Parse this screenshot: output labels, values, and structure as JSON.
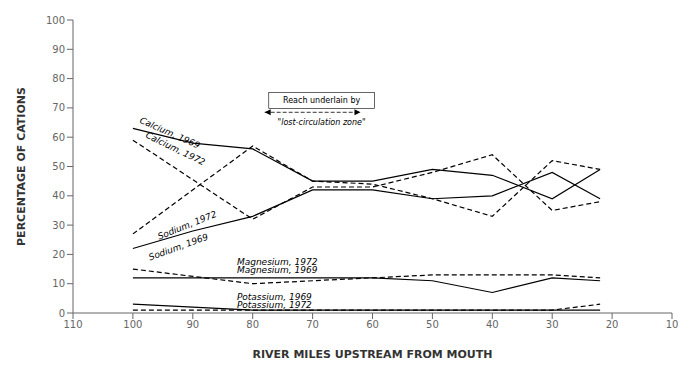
{
  "chart_data": {
    "type": "line",
    "xlabel": "RIVER MILES UPSTREAM FROM MOUTH",
    "ylabel": "PERCENTAGE OF CATIONS",
    "xlim": [
      110,
      10
    ],
    "ylim": [
      0,
      100
    ],
    "xticks": [
      110,
      100,
      90,
      80,
      70,
      60,
      50,
      40,
      30,
      20,
      10
    ],
    "yticks": [
      0,
      10,
      20,
      30,
      40,
      50,
      60,
      70,
      80,
      90,
      100
    ],
    "grid": false,
    "series": [
      {
        "name": "Calcium, 1969",
        "color": "#000000",
        "line_style": "solid",
        "x": [
          100,
          90,
          80,
          70,
          60,
          50,
          40,
          30,
          22
        ],
        "values": [
          63,
          58,
          56,
          45,
          45,
          49,
          47,
          39,
          49
        ]
      },
      {
        "name": "Calcium, 1972",
        "color": "#000000",
        "line_style": "dashed",
        "x": [
          100,
          80,
          70,
          60,
          50,
          40,
          30,
          22
        ],
        "values": [
          59,
          32,
          43,
          43,
          48,
          54,
          35,
          38
        ]
      },
      {
        "name": "Sodium, 1969",
        "color": "#000000",
        "line_style": "solid",
        "x": [
          100,
          90,
          80,
          70,
          60,
          50,
          40,
          30,
          22
        ],
        "values": [
          22,
          28,
          33,
          42,
          42,
          39,
          40,
          48,
          39
        ]
      },
      {
        "name": "Sodium, 1972",
        "color": "#000000",
        "line_style": "dashed",
        "x": [
          100,
          80,
          70,
          60,
          50,
          40,
          30,
          22
        ],
        "values": [
          27,
          57,
          45,
          44,
          39,
          33,
          52,
          49
        ]
      },
      {
        "name": "Magnesium, 1969",
        "color": "#000000",
        "line_style": "solid",
        "x": [
          100,
          80,
          70,
          60,
          50,
          40,
          30,
          22
        ],
        "values": [
          12,
          12,
          12,
          12,
          11,
          7,
          12,
          11
        ]
      },
      {
        "name": "Magnesium, 1972",
        "color": "#000000",
        "line_style": "dashed",
        "x": [
          100,
          80,
          60,
          50,
          40,
          30,
          22
        ],
        "values": [
          15,
          10,
          12,
          13,
          13,
          13,
          12
        ]
      },
      {
        "name": "Potassium, 1969",
        "color": "#000000",
        "line_style": "solid",
        "x": [
          100,
          80,
          70,
          60,
          50,
          40,
          30,
          22
        ],
        "values": [
          3,
          1,
          1,
          1,
          1,
          1,
          1,
          1
        ]
      },
      {
        "name": "Potassium, 1972",
        "color": "#000000",
        "line_style": "dashed",
        "x": [
          100,
          80,
          60,
          50,
          40,
          30,
          22
        ],
        "values": [
          1,
          1,
          1,
          1,
          1,
          1,
          3
        ]
      }
    ],
    "annotations": [
      "Reach underlain by",
      "\"lost-circulation zone\""
    ]
  }
}
